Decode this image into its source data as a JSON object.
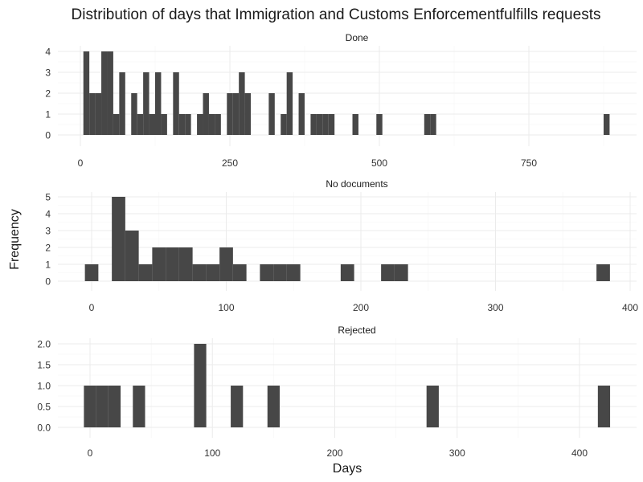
{
  "title": "Distribution of days that Immigration and Customs Enforcementfulfills requests",
  "colors": {
    "bar": "#474747",
    "grid_major": "#ebebeb",
    "grid_minor": "#f5f5f5",
    "text": "#1a1a1a",
    "tick_text": "#333333"
  },
  "chart_data": [
    {
      "type": "bar",
      "subtitle": "Done",
      "xlabel": "",
      "ylabel": "Frequency",
      "x_range": [
        -5,
        900
      ],
      "y_range": [
        0,
        4
      ],
      "x_ticks": [
        0,
        250,
        500,
        750
      ],
      "y_ticks": [
        0,
        1,
        2,
        3,
        4
      ],
      "bin_width": 10,
      "bars": [
        {
          "x0": 5,
          "x1": 15,
          "value": 4
        },
        {
          "x0": 15,
          "x1": 25,
          "value": 2
        },
        {
          "x0": 25,
          "x1": 35,
          "value": 2
        },
        {
          "x0": 35,
          "x1": 45,
          "value": 4
        },
        {
          "x0": 45,
          "x1": 55,
          "value": 4
        },
        {
          "x0": 55,
          "x1": 65,
          "value": 1
        },
        {
          "x0": 65,
          "x1": 75,
          "value": 3
        },
        {
          "x0": 85,
          "x1": 95,
          "value": 2
        },
        {
          "x0": 95,
          "x1": 105,
          "value": 1
        },
        {
          "x0": 105,
          "x1": 115,
          "value": 3
        },
        {
          "x0": 115,
          "x1": 125,
          "value": 1
        },
        {
          "x0": 125,
          "x1": 135,
          "value": 3
        },
        {
          "x0": 135,
          "x1": 145,
          "value": 1
        },
        {
          "x0": 155,
          "x1": 165,
          "value": 3
        },
        {
          "x0": 165,
          "x1": 175,
          "value": 1
        },
        {
          "x0": 175,
          "x1": 185,
          "value": 1
        },
        {
          "x0": 195,
          "x1": 205,
          "value": 1
        },
        {
          "x0": 205,
          "x1": 215,
          "value": 2
        },
        {
          "x0": 215,
          "x1": 225,
          "value": 1
        },
        {
          "x0": 225,
          "x1": 235,
          "value": 1
        },
        {
          "x0": 245,
          "x1": 255,
          "value": 2
        },
        {
          "x0": 255,
          "x1": 265,
          "value": 2
        },
        {
          "x0": 265,
          "x1": 275,
          "value": 3
        },
        {
          "x0": 275,
          "x1": 285,
          "value": 2
        },
        {
          "x0": 315,
          "x1": 325,
          "value": 2
        },
        {
          "x0": 335,
          "x1": 345,
          "value": 1
        },
        {
          "x0": 345,
          "x1": 355,
          "value": 3
        },
        {
          "x0": 365,
          "x1": 375,
          "value": 2
        },
        {
          "x0": 385,
          "x1": 395,
          "value": 1
        },
        {
          "x0": 395,
          "x1": 405,
          "value": 1
        },
        {
          "x0": 405,
          "x1": 415,
          "value": 1
        },
        {
          "x0": 415,
          "x1": 425,
          "value": 1
        },
        {
          "x0": 455,
          "x1": 465,
          "value": 1
        },
        {
          "x0": 495,
          "x1": 505,
          "value": 1
        },
        {
          "x0": 575,
          "x1": 585,
          "value": 1
        },
        {
          "x0": 585,
          "x1": 595,
          "value": 1
        },
        {
          "x0": 875,
          "x1": 885,
          "value": 1
        }
      ]
    },
    {
      "type": "bar",
      "subtitle": "No documents",
      "xlabel": "",
      "ylabel": "Frequency",
      "x_range": [
        -25,
        405
      ],
      "y_range": [
        0,
        5
      ],
      "x_ticks": [
        0,
        100,
        200,
        300,
        400
      ],
      "y_ticks": [
        0,
        1,
        2,
        3,
        4,
        5
      ],
      "bin_width": 10,
      "bars": [
        {
          "x0": -5,
          "x1": 5,
          "value": 1
        },
        {
          "x0": 15,
          "x1": 25,
          "value": 5
        },
        {
          "x0": 25,
          "x1": 35,
          "value": 3
        },
        {
          "x0": 35,
          "x1": 45,
          "value": 1
        },
        {
          "x0": 45,
          "x1": 55,
          "value": 2
        },
        {
          "x0": 55,
          "x1": 65,
          "value": 2
        },
        {
          "x0": 65,
          "x1": 75,
          "value": 2
        },
        {
          "x0": 75,
          "x1": 85,
          "value": 1
        },
        {
          "x0": 85,
          "x1": 95,
          "value": 1
        },
        {
          "x0": 95,
          "x1": 105,
          "value": 2
        },
        {
          "x0": 105,
          "x1": 115,
          "value": 1
        },
        {
          "x0": 125,
          "x1": 135,
          "value": 1
        },
        {
          "x0": 135,
          "x1": 145,
          "value": 1
        },
        {
          "x0": 145,
          "x1": 155,
          "value": 1
        },
        {
          "x0": 185,
          "x1": 195,
          "value": 1
        },
        {
          "x0": 215,
          "x1": 225,
          "value": 1
        },
        {
          "x0": 225,
          "x1": 235,
          "value": 1
        },
        {
          "x0": 375,
          "x1": 385,
          "value": 1
        }
      ]
    },
    {
      "type": "bar",
      "subtitle": "Rejected",
      "xlabel": "Days",
      "ylabel": "Frequency",
      "x_range": [
        -25,
        445
      ],
      "y_range": [
        0,
        2
      ],
      "x_ticks": [
        0,
        100,
        200,
        300,
        400
      ],
      "y_ticks": [
        "0.0",
        "0.5",
        "1.0",
        "1.5",
        "2.0"
      ],
      "bin_width": 10,
      "bars": [
        {
          "x0": -5,
          "x1": 5,
          "value": 1
        },
        {
          "x0": 5,
          "x1": 15,
          "value": 1
        },
        {
          "x0": 15,
          "x1": 25,
          "value": 1
        },
        {
          "x0": 35,
          "x1": 45,
          "value": 1
        },
        {
          "x0": 85,
          "x1": 95,
          "value": 2
        },
        {
          "x0": 115,
          "x1": 125,
          "value": 1
        },
        {
          "x0": 145,
          "x1": 155,
          "value": 1
        },
        {
          "x0": 275,
          "x1": 285,
          "value": 1
        },
        {
          "x0": 415,
          "x1": 425,
          "value": 1
        }
      ]
    }
  ]
}
